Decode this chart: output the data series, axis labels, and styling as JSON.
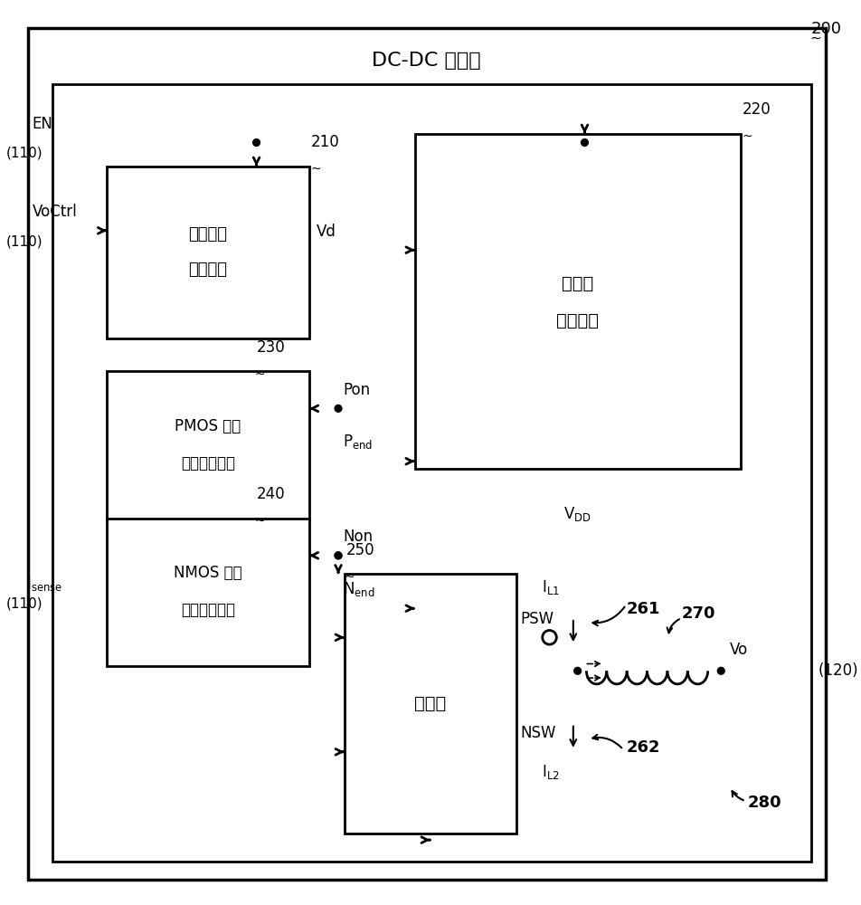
{
  "title": "DC-DC 转换器",
  "label_200": "200",
  "label_210": "210",
  "label_220": "220",
  "label_230": "230",
  "label_240": "240",
  "label_250": "250",
  "label_261": "261",
  "label_262": "262",
  "label_270": "270",
  "label_280": "280",
  "box_210_text1": "电压减少",
  "box_210_text2": "检测单元",
  "box_220_text1": "转换器",
  "box_220_text2": "控制单元",
  "box_230_text1": "PMOS 关断",
  "box_230_text2": "定时检测单元",
  "box_240_text1": "NMOS 关断",
  "box_240_text2": "定时检测单元",
  "box_250_text": "驱动器",
  "label_EN": "EN",
  "label_110a": "(110)",
  "label_110b": "(110)",
  "label_110c": "(110)",
  "label_VoCtrl": "VoCtrl",
  "label_Vd": "Vd",
  "label_Pon": "Pon",
  "label_Non": "Non",
  "label_PSW": "PSW",
  "label_NSW": "NSW",
  "label_Vo": "Vo",
  "label_120": "(120)",
  "label_280_num": "280",
  "bg_color": "#ffffff",
  "line_color": "#000000",
  "lw_main": 2.0,
  "lw_thin": 1.5
}
